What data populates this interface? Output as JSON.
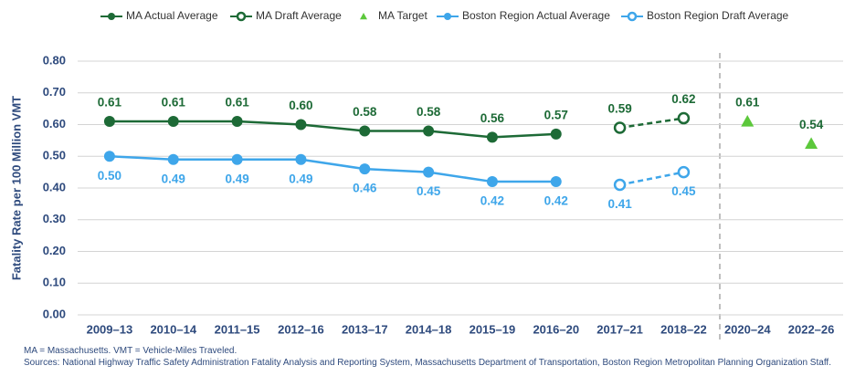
{
  "chart_data": {
    "type": "line",
    "y_label": "Fatality Rate per 100 Million VMT",
    "categories": [
      "2009–13",
      "2010–14",
      "2011–15",
      "2012–16",
      "2013–17",
      "2014–18",
      "2015–19",
      "2016–20",
      "2017–21",
      "2018–22",
      "2020–24",
      "2022–26"
    ],
    "ylim": [
      0,
      0.8
    ],
    "yticks": [
      {
        "value": 0,
        "label": "0.00"
      },
      {
        "value": 0.1,
        "label": "0.10"
      },
      {
        "value": 0.2,
        "label": "0.20"
      },
      {
        "value": 0.3,
        "label": "0.30"
      },
      {
        "value": 0.4,
        "label": "0.40"
      },
      {
        "value": 0.5,
        "label": "0.50"
      },
      {
        "value": 0.6,
        "label": "0.60"
      },
      {
        "value": 0.7,
        "label": "0.70"
      },
      {
        "value": 0.8,
        "label": "0.80"
      }
    ],
    "grid": true,
    "legend": "top",
    "series": [
      {
        "name": "MA Actual Average",
        "color": "#1d6a36",
        "marker": "circle",
        "line": "solid",
        "label_side": "above",
        "values": [
          0.61,
          0.61,
          0.61,
          0.6,
          0.58,
          0.58,
          0.56,
          0.57,
          null,
          null,
          null,
          null
        ],
        "value_labels": [
          "0.61",
          "0.61",
          "0.61",
          "0.60",
          "0.58",
          "0.58",
          "0.56",
          "0.57",
          null,
          null,
          null,
          null
        ]
      },
      {
        "name": "MA Draft Average",
        "color": "#1d6a36",
        "marker": "open-circle",
        "line": "dashed",
        "label_side": "above",
        "values": [
          null,
          null,
          null,
          null,
          null,
          null,
          null,
          null,
          0.59,
          0.62,
          null,
          null
        ],
        "value_labels": [
          null,
          null,
          null,
          null,
          null,
          null,
          null,
          null,
          "0.59",
          "0.62",
          null,
          null
        ]
      },
      {
        "name": "MA Target",
        "color": "#5cc83b",
        "label_color": "#1d6a36",
        "marker": "triangle",
        "line": "none",
        "label_side": "above",
        "values": [
          null,
          null,
          null,
          null,
          null,
          null,
          null,
          null,
          null,
          null,
          0.61,
          0.54
        ],
        "value_labels": [
          null,
          null,
          null,
          null,
          null,
          null,
          null,
          null,
          null,
          null,
          "0.61",
          "0.54"
        ]
      },
      {
        "name": "Boston Region Actual Average",
        "color": "#3ea6ea",
        "marker": "circle",
        "line": "solid",
        "label_side": "below",
        "values": [
          0.5,
          0.49,
          0.49,
          0.49,
          0.46,
          0.45,
          0.42,
          0.42,
          null,
          null,
          null,
          null
        ],
        "value_labels": [
          "0.50",
          "0.49",
          "0.49",
          "0.49",
          "0.46",
          "0.45",
          "0.42",
          "0.42",
          null,
          null,
          null,
          null
        ]
      },
      {
        "name": "Boston Region Draft Average",
        "color": "#3ea6ea",
        "marker": "open-circle",
        "line": "dashed",
        "label_side": "below",
        "values": [
          null,
          null,
          null,
          null,
          null,
          null,
          null,
          null,
          0.41,
          0.45,
          null,
          null
        ],
        "value_labels": [
          null,
          null,
          null,
          null,
          null,
          null,
          null,
          null,
          "0.41",
          "0.45",
          null,
          null
        ]
      }
    ],
    "notes": [
      "MA = Massachusetts. VMT = Vehicle-Miles Traveled.",
      "Sources: National Highway Traffic Safety Administration Fatality Analysis and Reporting System, Massachusetts Department of Transportation, Boston Region Metropolitan Planning Organization Staff."
    ]
  }
}
